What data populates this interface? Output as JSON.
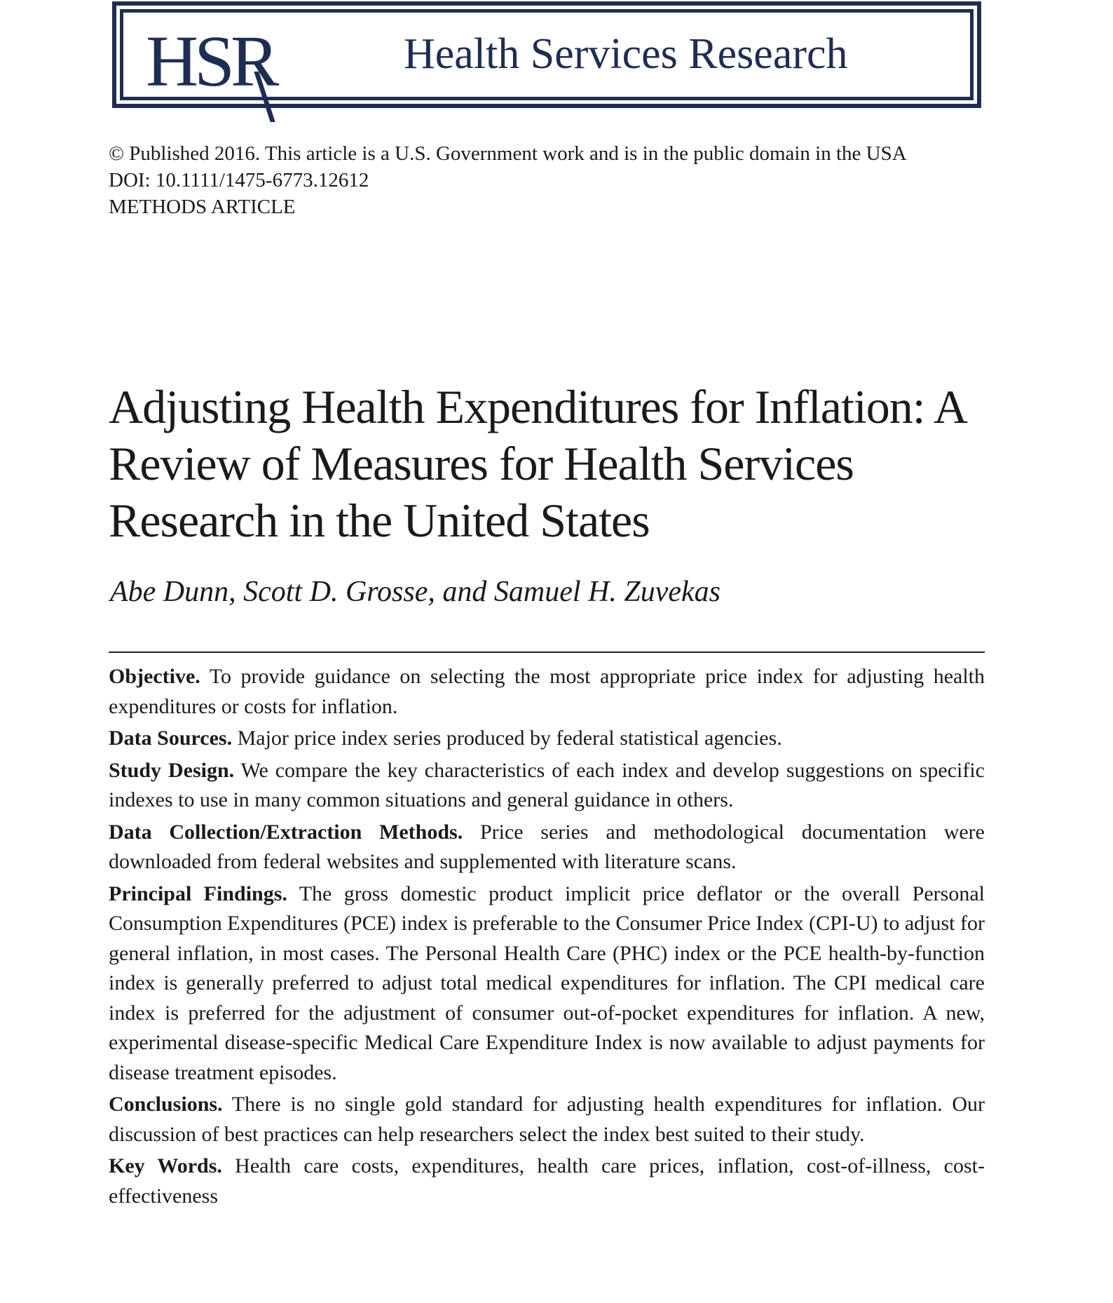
{
  "masthead": {
    "logo": "HSR",
    "journal_name": "Health Services Research",
    "brand_color": "#1e2d52"
  },
  "meta": {
    "copyright": "© Published 2016. This article is a U.S. Government work and is in the public domain in the USA",
    "doi": "DOI: 10.1111/1475-6773.12612",
    "article_type": "METHODS ARTICLE"
  },
  "title": "Adjusting Health Expenditures for Inflation: A Review of Measures for Health Services Research in the United States",
  "authors": "Abe Dunn, Scott D. Grosse, and Samuel H. Zuvekas",
  "abstract": [
    {
      "heading": "Objective.",
      "text": "To provide guidance on selecting the most appropriate price index for adjusting health expenditures or costs for inflation."
    },
    {
      "heading": "Data Sources.",
      "text": "Major price index series produced by federal statistical agencies."
    },
    {
      "heading": "Study Design.",
      "text": "We compare the key characteristics of each index and develop suggestions on specific indexes to use in many common situations and general guidance in others."
    },
    {
      "heading": "Data Collection/Extraction Methods.",
      "text": "Price series and methodological documentation were downloaded from federal websites and supplemented with literature scans."
    },
    {
      "heading": "Principal Findings.",
      "text": "The gross domestic product implicit price deflator or the overall Personal Consumption Expenditures (PCE) index is preferable to the Consumer Price Index (CPI-U) to adjust for general inflation, in most cases. The Personal Health Care (PHC) index or the PCE health-by-function index is generally preferred to adjust total medical expenditures for inflation. The CPI medical care index is preferred for the adjustment of consumer out-of-pocket expenditures for inflation. A new, experimental disease-specific Medical Care Expenditure Index is now available to adjust payments for disease treatment episodes."
    },
    {
      "heading": "Conclusions.",
      "text": "There is no single gold standard for adjusting health expenditures for inflation. Our discussion of best practices can help researchers select the index best suited to their study."
    },
    {
      "heading": "Key Words.",
      "text": "Health care costs, expenditures, health care prices, inflation, cost-of-illness, cost-effectiveness"
    }
  ]
}
